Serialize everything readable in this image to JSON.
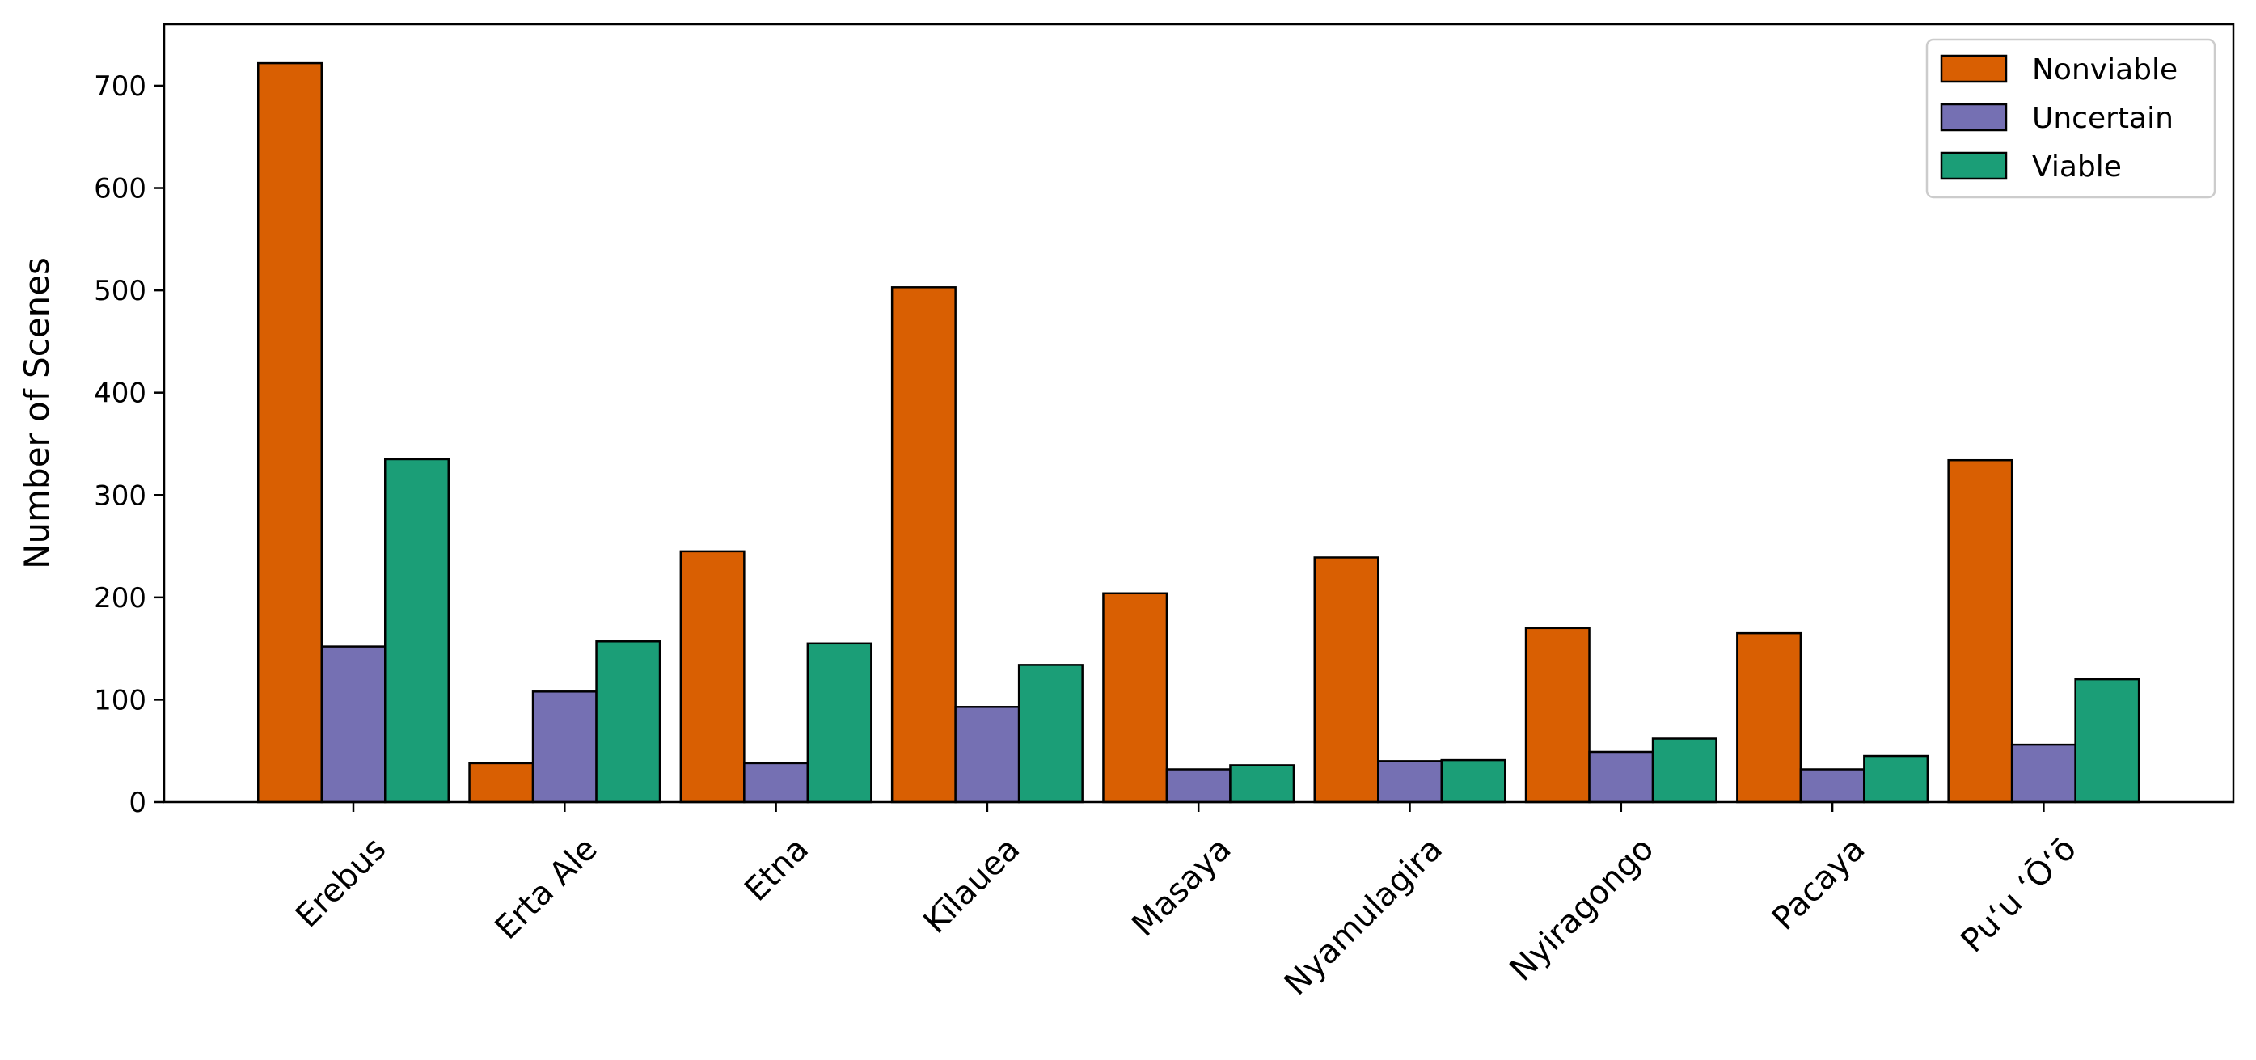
{
  "chart_data": {
    "type": "bar",
    "title": "",
    "xlabel": "",
    "ylabel": "Number of Scenes",
    "ylim": [
      0,
      760
    ],
    "yticks": [
      0,
      100,
      200,
      300,
      400,
      500,
      600,
      700
    ],
    "grid": false,
    "legend_position": "top-right",
    "categories": [
      "Erebus",
      "Erta Ale",
      "Etna",
      "Kīlauea",
      "Masaya",
      "Nyamulagira",
      "Nyiragongo",
      "Pacaya",
      "Puʻu ʻŌʻō"
    ],
    "series": [
      {
        "name": "Nonviable",
        "color": "#d95f02",
        "values": [
          722,
          38,
          245,
          503,
          204,
          239,
          170,
          165,
          334
        ]
      },
      {
        "name": "Uncertain",
        "color": "#7570b3",
        "values": [
          152,
          108,
          38,
          93,
          32,
          40,
          49,
          32,
          56
        ]
      },
      {
        "name": "Viable",
        "color": "#1b9e77",
        "values": [
          335,
          157,
          155,
          134,
          36,
          41,
          62,
          45,
          120
        ]
      }
    ]
  }
}
